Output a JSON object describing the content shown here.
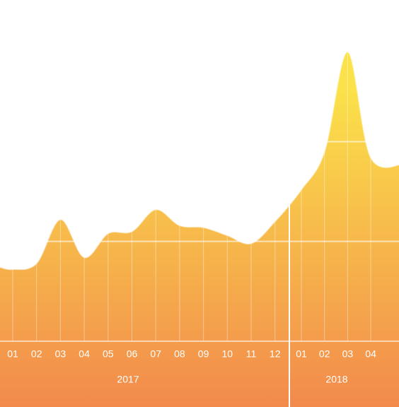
{
  "chart_data": {
    "type": "area",
    "groups": [
      {
        "label": "2017",
        "categories": [
          "01",
          "02",
          "03",
          "04",
          "05",
          "06",
          "07",
          "08",
          "09",
          "10",
          "11",
          "12"
        ],
        "values": [
          36,
          39,
          61,
          42,
          54,
          55,
          66,
          58,
          57,
          53,
          49,
          60
        ]
      },
      {
        "label": "2018",
        "categories": [
          "01",
          "02",
          "03",
          "04"
        ],
        "values": [
          76,
          95,
          145,
          92
        ]
      }
    ],
    "ylim": [
      -33,
      171
    ],
    "yticks": [
      0,
      50,
      100
    ],
    "grid": true,
    "colors": [
      "#fbe24a",
      "#f28a4c"
    ]
  }
}
